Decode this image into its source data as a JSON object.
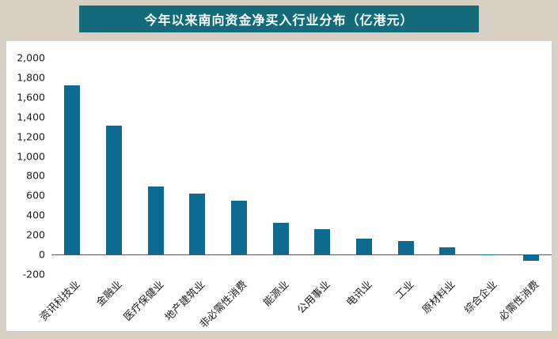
{
  "colors": {
    "page_bg": "#d7d0c3",
    "panel_bg": "#ffffff",
    "header_bg": "#136b7a",
    "header_text": "#ffffff",
    "bar": "#0e6a90",
    "axis_text": "#1a1a1a",
    "zero_line": "#595959"
  },
  "chart_data": {
    "type": "bar",
    "title": "今年以来南向资金净买入行业分布（亿港元）",
    "categories": [
      "资讯科技业",
      "金融业",
      "医疗保健业",
      "地产建筑业",
      "非必需性消费",
      "能源业",
      "公用事业",
      "电讯业",
      "工业",
      "原材料业",
      "综合企业",
      "必需性消费"
    ],
    "values": [
      1720,
      1310,
      690,
      620,
      545,
      320,
      260,
      160,
      135,
      70,
      4,
      -60
    ],
    "xlabel": "",
    "ylabel": "",
    "ylim": [
      -200,
      2000
    ],
    "ytick_step": 200,
    "grid": false,
    "legend": "none"
  }
}
